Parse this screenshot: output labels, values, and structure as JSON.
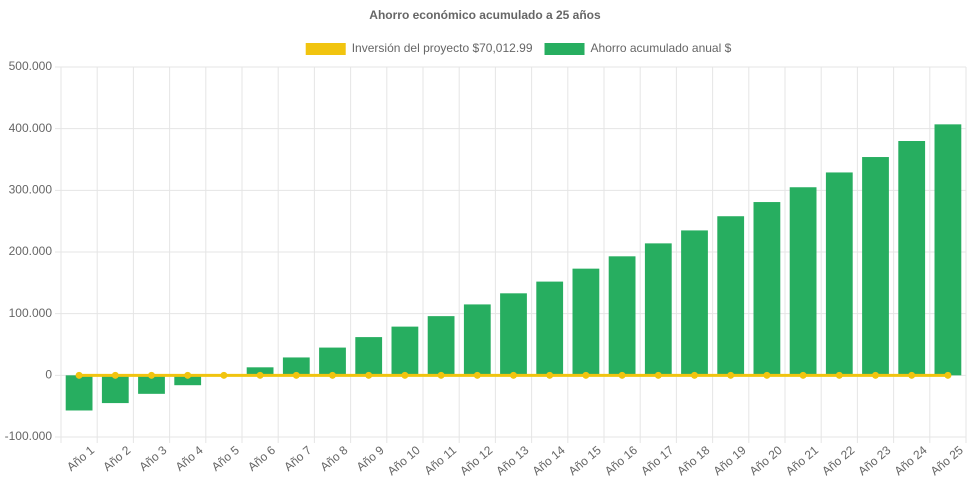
{
  "chart_data": {
    "type": "bar",
    "title": "Ahorro económico acumulado a 25 años",
    "categories": [
      "Año 1",
      "Año 2",
      "Año 3",
      "Año 4",
      "Año 5",
      "Año 6",
      "Año 7",
      "Año 8",
      "Año 9",
      "Año 10",
      "Año 11",
      "Año 12",
      "Año 13",
      "Año 14",
      "Año 15",
      "Año 16",
      "Año 17",
      "Año 18",
      "Año 19",
      "Año 20",
      "Año 21",
      "Año 22",
      "Año 23",
      "Año 24",
      "Año 25"
    ],
    "series": [
      {
        "name": "Inversión del proyecto $70,012.99",
        "color": "#f1c40f",
        "type": "line",
        "values": [
          0,
          0,
          0,
          0,
          0,
          0,
          0,
          0,
          0,
          0,
          0,
          0,
          0,
          0,
          0,
          0,
          0,
          0,
          0,
          0,
          0,
          0,
          0,
          0,
          0
        ]
      },
      {
        "name": "Ahorro acumulado anual $",
        "color": "#27ae60",
        "type": "bar",
        "values": [
          -57000,
          -45000,
          -30000,
          -16000,
          -1000,
          13000,
          29000,
          45000,
          62000,
          79000,
          96000,
          115000,
          133000,
          152000,
          173000,
          193000,
          214000,
          235000,
          258000,
          281000,
          305000,
          329000,
          354000,
          380000,
          407000
        ]
      }
    ],
    "ylim": [
      -100000,
      500000
    ],
    "yticks": [
      {
        "value": -100000,
        "label": "-100.000"
      },
      0,
      {
        "value": 100000,
        "label": "100.000"
      },
      {
        "value": 200000,
        "label": "200.000"
      },
      {
        "value": 300000,
        "label": "300.000"
      },
      {
        "value": 400000,
        "label": "400.000"
      },
      {
        "value": 500000,
        "label": "500.000"
      }
    ],
    "grid": true
  }
}
